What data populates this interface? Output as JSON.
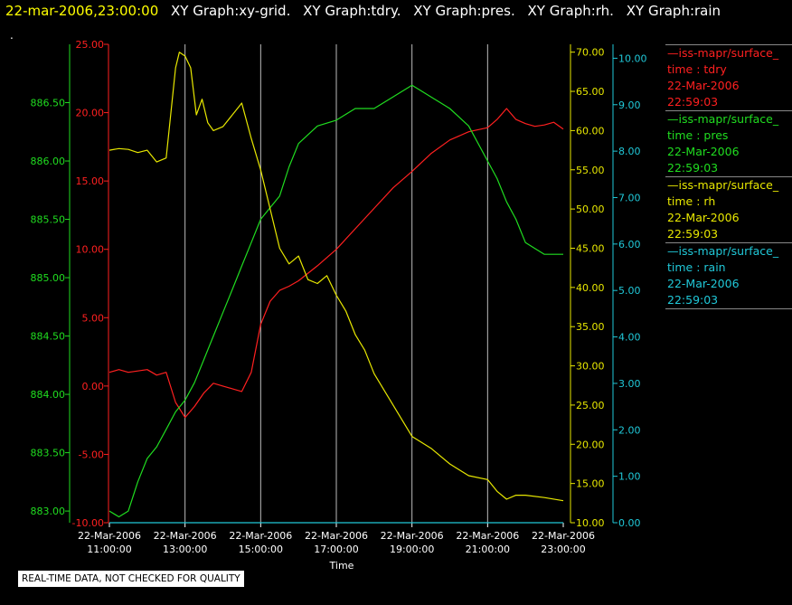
{
  "header": {
    "timestamp": "22-mar-2006,23:00:00",
    "plot_names": [
      "XY Graph:xy-grid.",
      "XY Graph:tdry.",
      "XY Graph:pres.",
      "XY Graph:rh.",
      "XY Graph:rain"
    ]
  },
  "note": "REAL-TIME DATA, NOT CHECKED FOR QUALITY",
  "legend": [
    {
      "source": "—iss-mapr/surface_",
      "variable": "time : tdry",
      "date": "22-Mar-2006",
      "time": "22:59:03",
      "color": "#ff2020"
    },
    {
      "source": "—iss-mapr/surface_",
      "variable": "time : pres",
      "date": "22-Mar-2006",
      "time": "22:59:03",
      "color": "#20dd20"
    },
    {
      "source": "—iss-mapr/surface_",
      "variable": "time : rh",
      "date": "22-Mar-2006",
      "time": "22:59:03",
      "color": "#e8e800"
    },
    {
      "source": "—iss-mapr/surface_",
      "variable": "time : rain",
      "date": "22-Mar-2006",
      "time": "22:59:03",
      "color": "#20c8d8"
    }
  ],
  "chart_data": {
    "type": "line",
    "xlabel": "Time",
    "x_ticks": [
      [
        "22-Mar-2006",
        "11:00:00"
      ],
      [
        "22-Mar-2006",
        "13:00:00"
      ],
      [
        "22-Mar-2006",
        "15:00:00"
      ],
      [
        "22-Mar-2006",
        "17:00:00"
      ],
      [
        "22-Mar-2006",
        "19:00:00"
      ],
      [
        "22-Mar-2006",
        "21:00:00"
      ],
      [
        "22-Mar-2006",
        "23:00:00"
      ]
    ],
    "x_range_hours": [
      11,
      23
    ],
    "grid": "vertical at x ticks",
    "axes": [
      {
        "series": "pres",
        "color": "#20dd20",
        "range": [
          882.9,
          887.0
        ],
        "ticks": [
          "883.00",
          "883.50",
          "884.00",
          "884.50",
          "885.00",
          "885.50",
          "886.00",
          "886.50"
        ],
        "tick_values": [
          883.0,
          883.5,
          884.0,
          884.5,
          885.0,
          885.5,
          886.0,
          886.5
        ]
      },
      {
        "series": "tdry",
        "color": "#ff2020",
        "range": [
          -10.0,
          25.0
        ],
        "ticks": [
          "-10.00",
          "-5.00",
          "0.00",
          "5.00",
          "10.00",
          "15.00",
          "20.00",
          "25.00"
        ],
        "tick_values": [
          -10,
          -5,
          0,
          5,
          10,
          15,
          20,
          25
        ]
      },
      {
        "series": "rh",
        "color": "#e8e800",
        "range": [
          10.0,
          71.0
        ],
        "ticks": [
          "10.00",
          "15.00",
          "20.00",
          "25.00",
          "30.00",
          "35.00",
          "40.00",
          "45.00",
          "50.00",
          "55.00",
          "60.00",
          "65.00",
          "70.00"
        ],
        "tick_values": [
          10,
          15,
          20,
          25,
          30,
          35,
          40,
          45,
          50,
          55,
          60,
          65,
          70
        ]
      },
      {
        "series": "rain",
        "color": "#20c8d8",
        "range": [
          0.0,
          10.3
        ],
        "ticks": [
          "0.00",
          "1.00",
          "2.00",
          "3.00",
          "4.00",
          "5.00",
          "6.00",
          "7.00",
          "8.00",
          "9.00",
          "10.00"
        ],
        "tick_values": [
          0,
          1,
          2,
          3,
          4,
          5,
          6,
          7,
          8,
          9,
          10
        ]
      }
    ],
    "series": [
      {
        "name": "tdry",
        "color": "#ff2020",
        "x": [
          11.0,
          11.25,
          11.5,
          11.75,
          12.0,
          12.25,
          12.5,
          12.75,
          13.0,
          13.25,
          13.5,
          13.75,
          14.0,
          14.25,
          14.5,
          14.75,
          15.0,
          15.25,
          15.5,
          15.75,
          16.0,
          16.5,
          17.0,
          17.5,
          18.0,
          18.5,
          19.0,
          19.5,
          20.0,
          20.5,
          21.0,
          21.25,
          21.5,
          21.75,
          22.0,
          22.25,
          22.5,
          22.75,
          23.0
        ],
        "y": [
          1.0,
          1.2,
          1.0,
          1.1,
          1.2,
          0.8,
          1.0,
          -1.2,
          -2.3,
          -1.5,
          -0.5,
          0.2,
          0.0,
          -0.2,
          -0.4,
          1.0,
          4.5,
          6.2,
          7.0,
          7.3,
          7.7,
          8.8,
          10.0,
          11.5,
          13.0,
          14.5,
          15.7,
          17.0,
          18.0,
          18.6,
          18.9,
          19.5,
          20.3,
          19.5,
          19.2,
          19.0,
          19.1,
          19.3,
          18.8
        ]
      },
      {
        "name": "pres",
        "color": "#20dd20",
        "x": [
          11.0,
          11.25,
          11.5,
          11.75,
          12.0,
          12.25,
          12.5,
          12.75,
          13.0,
          13.25,
          13.5,
          13.75,
          14.0,
          14.25,
          14.5,
          14.75,
          15.0,
          15.25,
          15.5,
          15.75,
          16.0,
          16.5,
          17.0,
          17.5,
          18.0,
          18.5,
          19.0,
          19.25,
          19.5,
          19.75,
          20.0,
          20.5,
          21.0,
          21.25,
          21.5,
          21.75,
          22.0,
          22.25,
          22.5,
          22.75,
          23.0
        ],
        "y": [
          883.0,
          882.95,
          883.0,
          883.25,
          883.45,
          883.55,
          883.7,
          883.85,
          883.95,
          884.1,
          884.3,
          884.5,
          884.7,
          884.9,
          885.1,
          885.3,
          885.5,
          885.6,
          885.7,
          885.95,
          886.15,
          886.3,
          886.35,
          886.45,
          886.45,
          886.55,
          886.65,
          886.6,
          886.55,
          886.5,
          886.45,
          886.3,
          886.0,
          885.85,
          885.65,
          885.5,
          885.3,
          885.25,
          885.2,
          885.2,
          885.2
        ]
      },
      {
        "name": "rh",
        "color": "#e8e800",
        "x": [
          11.0,
          11.25,
          11.5,
          11.75,
          12.0,
          12.25,
          12.5,
          12.75,
          12.85,
          13.0,
          13.15,
          13.3,
          13.45,
          13.6,
          13.75,
          14.0,
          14.25,
          14.5,
          14.75,
          15.0,
          15.25,
          15.5,
          15.75,
          16.0,
          16.25,
          16.5,
          16.75,
          17.0,
          17.25,
          17.5,
          17.75,
          18.0,
          18.5,
          19.0,
          19.5,
          20.0,
          20.5,
          21.0,
          21.25,
          21.5,
          21.75,
          22.0,
          22.5,
          23.0
        ],
        "y": [
          57.5,
          57.7,
          57.6,
          57.2,
          57.5,
          56.0,
          56.5,
          68.0,
          70.0,
          69.5,
          68.0,
          62.0,
          64.0,
          61.0,
          60.0,
          60.5,
          62.0,
          63.5,
          59.0,
          55.0,
          50.0,
          45.0,
          43.0,
          44.0,
          41.0,
          40.5,
          41.5,
          39.0,
          37.0,
          34.0,
          32.0,
          29.0,
          25.0,
          21.0,
          19.5,
          17.5,
          16.0,
          15.5,
          14.0,
          13.0,
          13.5,
          13.5,
          13.2,
          12.8
        ]
      },
      {
        "name": "rain",
        "color": "#20c8d8",
        "x": [
          11.0,
          23.0
        ],
        "y": [
          0.0,
          0.0
        ]
      }
    ]
  }
}
